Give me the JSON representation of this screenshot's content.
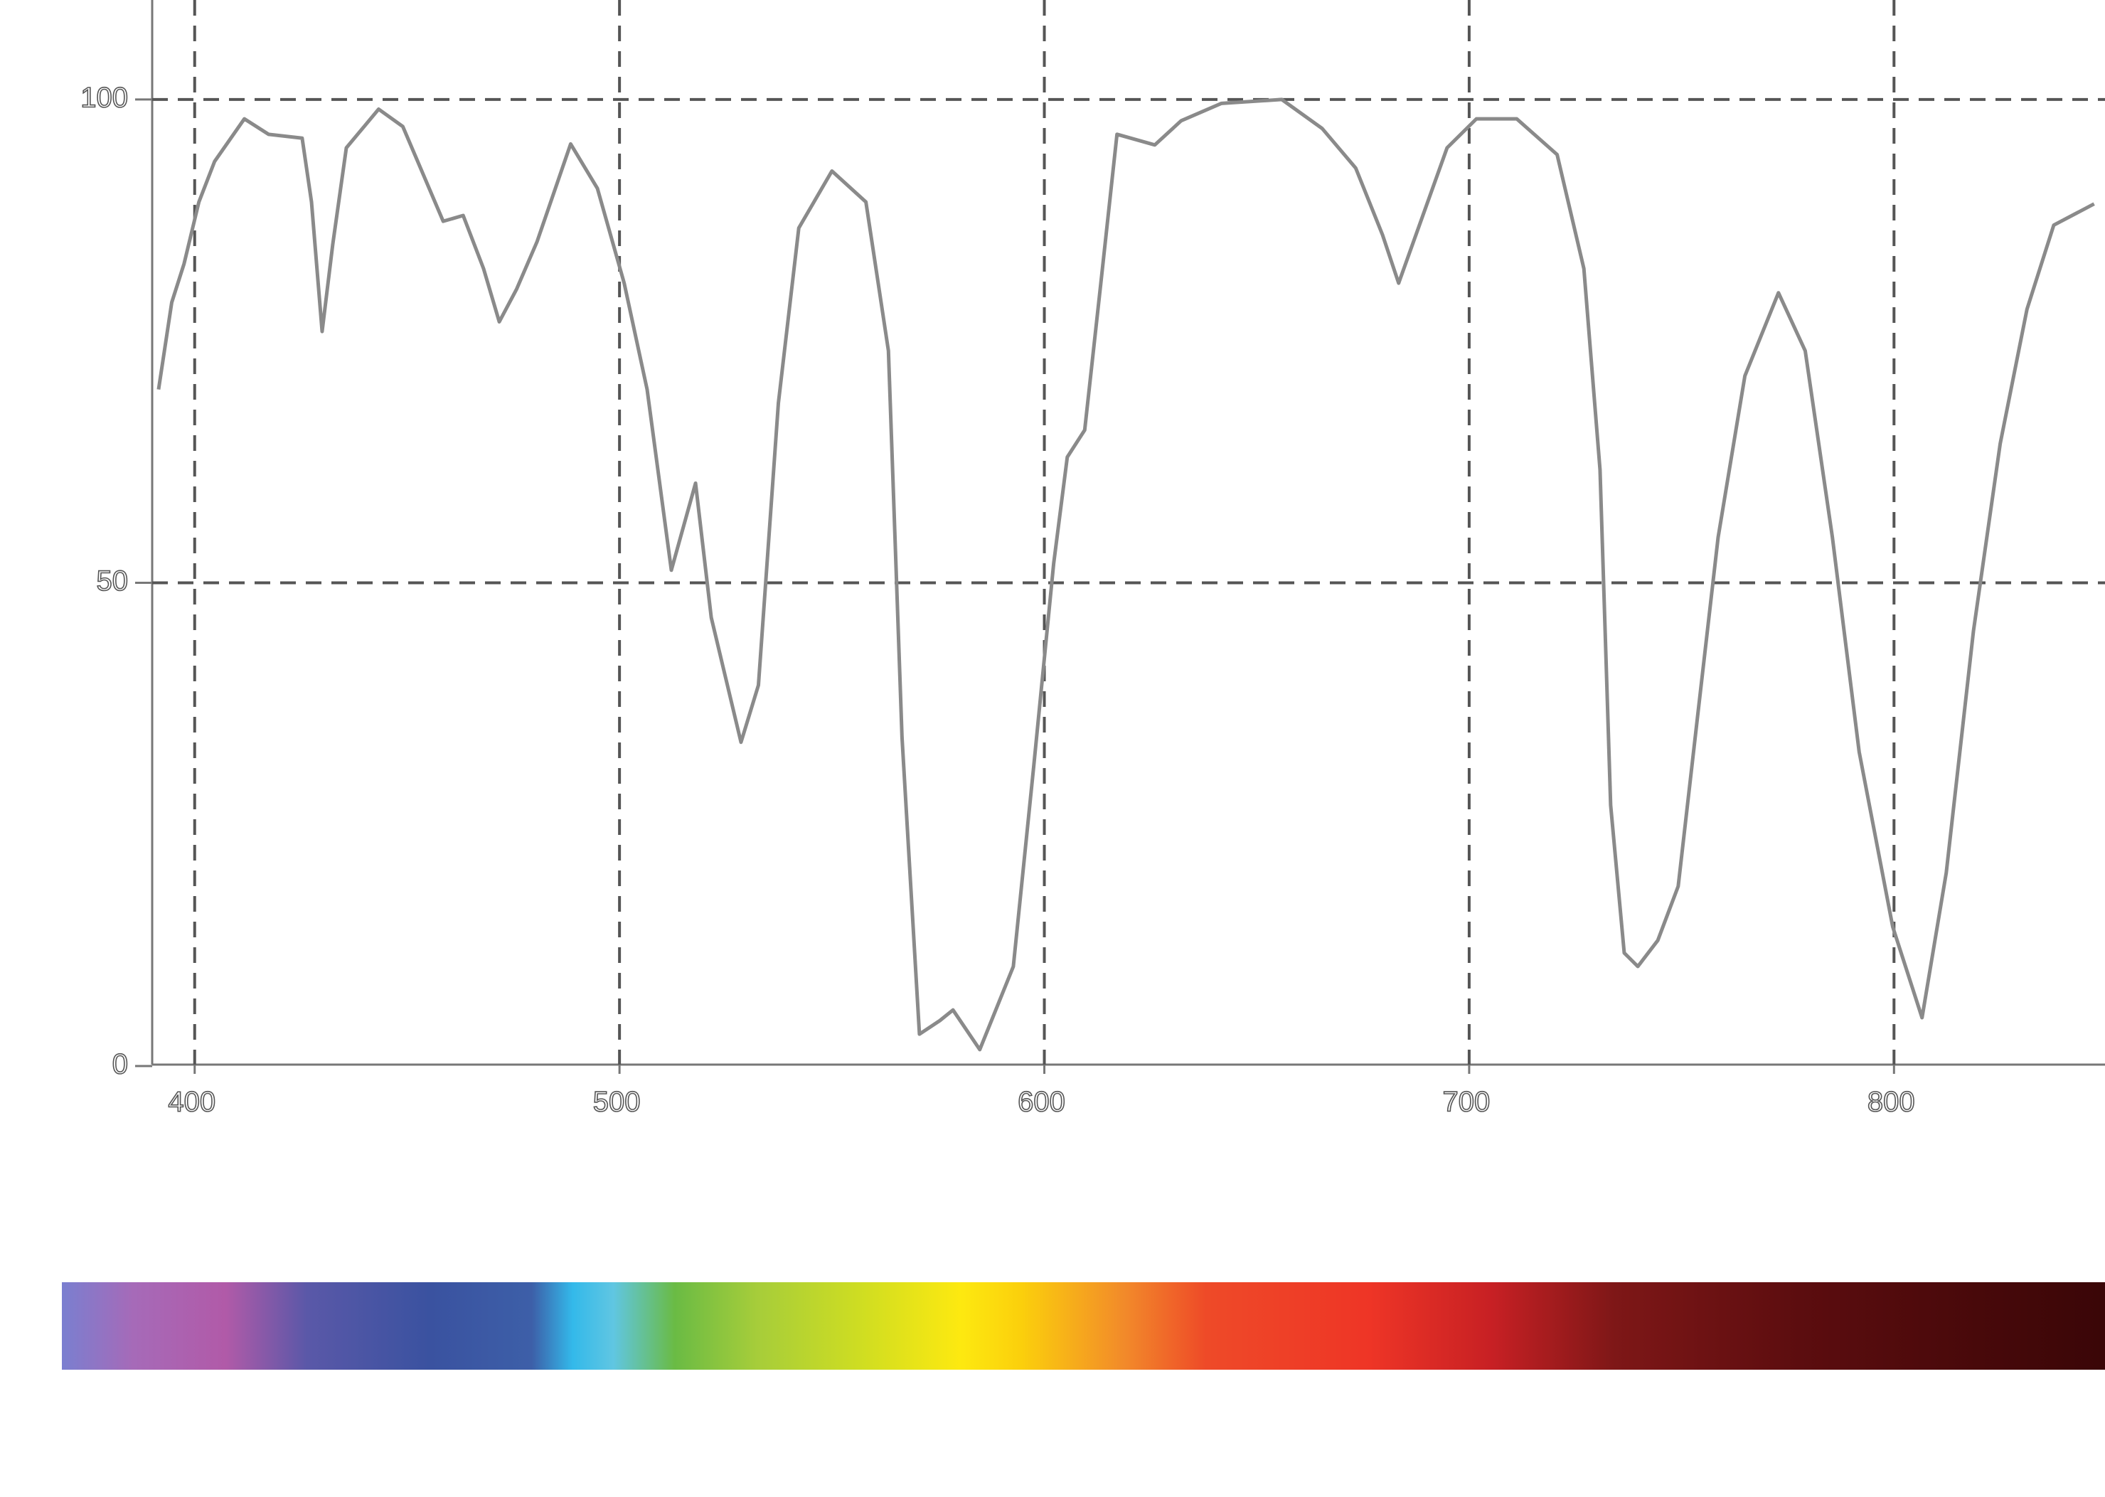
{
  "chart_data": {
    "type": "line",
    "x": [
      391.5,
      394.6,
      397.5,
      401,
      404.7,
      411.7,
      417.4,
      425.3,
      427.5,
      430,
      432.5,
      435.7,
      443.3,
      449,
      458.5,
      463.2,
      468,
      471.7,
      475.8,
      480.6,
      488.5,
      494.8,
      501.1,
      506.5,
      512.2,
      517.9,
      521.6,
      528.6,
      532.7,
      537.4,
      542.2,
      550,
      558,
      563.3,
      566.5,
      570.6,
      575.4,
      578.5,
      584.8,
      592.7,
      597.5,
      602.2,
      605.4,
      609.5,
      613.3,
      617.1,
      626,
      632.2,
      641.7,
      655.9,
      665.4,
      673.3,
      679.6,
      683.4,
      689.1,
      694.8,
      701.7,
      711.2,
      720.7,
      727,
      730.8,
      733.3,
      736.5,
      739.7,
      744.4,
      749.2,
      753.9,
      758.6,
      764.9,
      772.8,
      779.1,
      785.5,
      791.8,
      799.7,
      806.6,
      812.3,
      818.7,
      825,
      831.3,
      837.6,
      847.1
    ],
    "series": [
      {
        "color": "#8a8a8a",
        "values": [
          70,
          79,
          83,
          89.4,
          93.6,
          98,
          96.4,
          96,
          89.4,
          76,
          85,
          95,
          99,
          97.2,
          87.4,
          88,
          82.5,
          77,
          80.4,
          85.3,
          95.4,
          90.8,
          81,
          70,
          51.3,
          60.3,
          46.4,
          33.5,
          39.4,
          68.6,
          86.7,
          92.6,
          89.4,
          74,
          34,
          3.3,
          4.7,
          5.8,
          1.7,
          10.3,
          31,
          52,
          63,
          65.8,
          81,
          96.4,
          95.3,
          97.8,
          99.6,
          100,
          97,
          92.9,
          86,
          81,
          88,
          95,
          98,
          98,
          94.3,
          82.5,
          61.7,
          27,
          11.7,
          10.3,
          13,
          18.6,
          36.7,
          54.7,
          71.4,
          80,
          74,
          54.7,
          32.5,
          14.4,
          5,
          20,
          45,
          64.4,
          78.3,
          87,
          89.2
        ]
      }
    ],
    "xlim": [
      390,
      850
    ],
    "xticks": [
      400,
      500,
      600,
      700,
      800
    ],
    "ylim": [
      0,
      110
    ],
    "yticks": [
      0,
      50,
      100
    ],
    "grid": true
  }
}
